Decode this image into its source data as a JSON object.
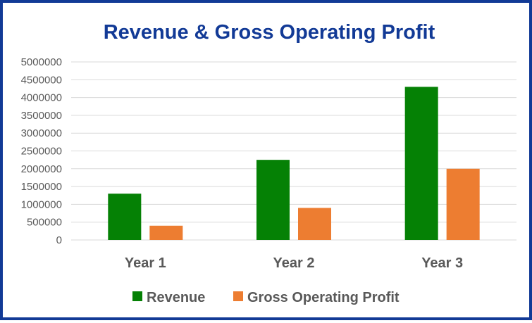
{
  "colors": {
    "border": "#123a96",
    "title": "#123a96",
    "revenue": "#058105",
    "gross_operating_profit": "#ed7d31",
    "gridline": "#d9d9d9",
    "text": "#595959"
  },
  "chart_data": {
    "type": "bar",
    "title": "Revenue & Gross Operating Profit",
    "categories": [
      "Year 1",
      "Year 2",
      "Year 3"
    ],
    "series": [
      {
        "name": "Revenue",
        "values": [
          1300000,
          2250000,
          4300000
        ]
      },
      {
        "name": "Gross Operating Profit",
        "values": [
          400000,
          900000,
          2000000
        ]
      }
    ],
    "ylim": [
      0,
      5000000
    ],
    "yticks": [
      "0",
      "500000",
      "1000000",
      "1500000",
      "2000000",
      "2500000",
      "3000000",
      "3500000",
      "4000000",
      "4500000",
      "5000000"
    ],
    "grid": true,
    "legend_position": "bottom"
  }
}
